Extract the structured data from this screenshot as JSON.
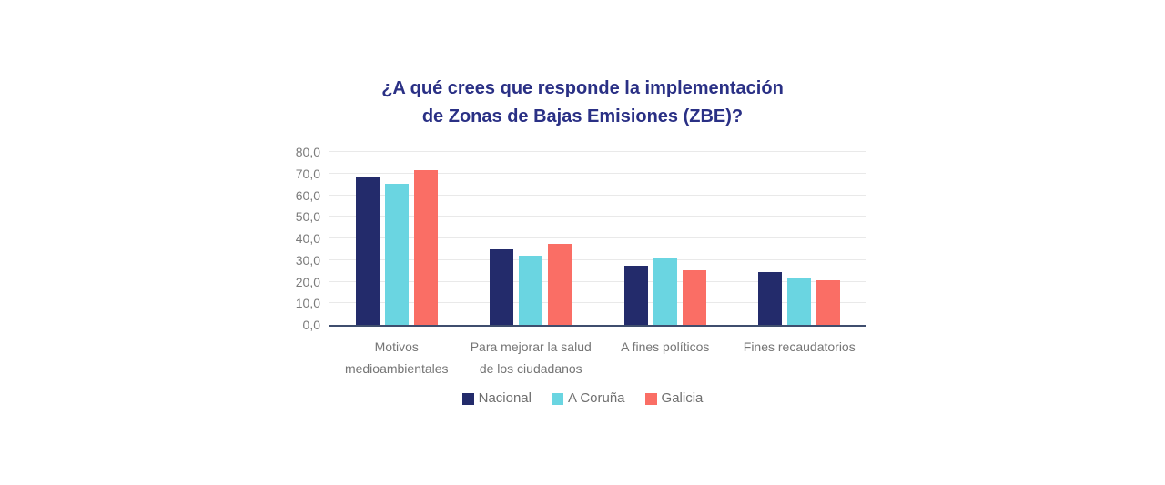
{
  "chart_data": {
    "type": "bar",
    "title": "¿A qué crees que responde la implementación de Zonas de Bajas Emisiones (ZBE)?",
    "title_lines": [
      "¿A qué crees que responde la implementación",
      "de Zonas de Bajas Emisiones (ZBE)?"
    ],
    "categories": [
      "Motivos medioambientales",
      "Para mejorar la salud de los ciudadanos",
      "A fines políticos",
      "Fines recaudatorios"
    ],
    "series": [
      {
        "name": "Nacional",
        "color": "#232B6B",
        "values": [
          68.2,
          35.0,
          27.2,
          24.4
        ]
      },
      {
        "name": "A Coruña",
        "color": "#6AD5E1",
        "values": [
          65.4,
          32.0,
          31.0,
          21.6
        ]
      },
      {
        "name": "Galicia",
        "color": "#FA6E65",
        "values": [
          71.5,
          37.4,
          25.2,
          20.5
        ]
      }
    ],
    "xlabel": "",
    "ylabel": "",
    "ylim": [
      0,
      80
    ],
    "y_tick_step": 10,
    "y_ticks": [
      "0,0",
      "10,0",
      "20,0",
      "30,0",
      "40,0",
      "50,0",
      "60,0",
      "70,0",
      "80,0"
    ],
    "grid": true,
    "legend_position": "bottom"
  },
  "colors": {
    "background": "#FFFFFF",
    "title": "#2A3085",
    "axis_line": "#3F4E6E",
    "gridline": "#E9E9E9",
    "tick_label": "#7B7B7B",
    "category_label": "#757575",
    "legend_label": "#6F6F6F"
  }
}
